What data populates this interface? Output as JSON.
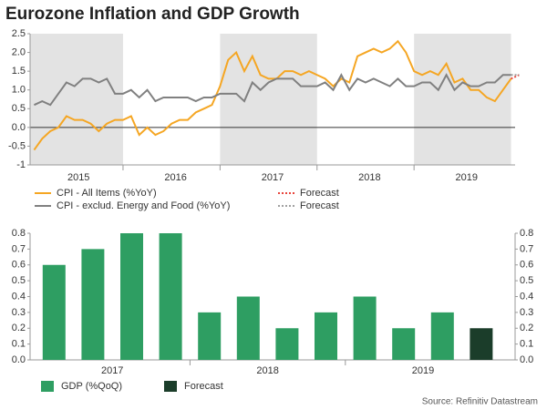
{
  "title": "Eurozone Inflation and GDP Growth",
  "source": "Source: Refinitiv Datastream",
  "chart_data": [
    {
      "type": "line",
      "categories": [
        null,
        null,
        null,
        null,
        null,
        "2015",
        null,
        null,
        null,
        null,
        null,
        null,
        null,
        null,
        null,
        null,
        null,
        "2016",
        null,
        null,
        null,
        null,
        null,
        null,
        null,
        null,
        null,
        null,
        null,
        "2017",
        null,
        null,
        null,
        null,
        null,
        null,
        null,
        null,
        null,
        null,
        null,
        "2018",
        null,
        null,
        null,
        null,
        null,
        null,
        null,
        null,
        null,
        null,
        null,
        "2019",
        null,
        null,
        null,
        null,
        null,
        null,
        null
      ],
      "series": [
        {
          "name": "CPI - All Items (%YoY)",
          "color": "#f5a623",
          "line_style": "solid",
          "values": [
            -0.6,
            -0.3,
            -0.1,
            0.0,
            0.3,
            0.2,
            0.2,
            0.1,
            -0.1,
            0.1,
            0.2,
            0.2,
            0.3,
            -0.2,
            0.0,
            -0.2,
            -0.1,
            0.1,
            0.2,
            0.2,
            0.4,
            0.5,
            0.6,
            1.1,
            1.8,
            2.0,
            1.5,
            1.9,
            1.4,
            1.3,
            1.3,
            1.5,
            1.5,
            1.4,
            1.5,
            1.4,
            1.3,
            1.1,
            1.3,
            1.2,
            1.9,
            2.0,
            2.1,
            2.0,
            2.1,
            2.3,
            2.0,
            1.5,
            1.4,
            1.5,
            1.4,
            1.7,
            1.2,
            1.3,
            1.0,
            1.0,
            0.8,
            0.7,
            1.0,
            1.3,
            null
          ]
        },
        {
          "name": "Forecast",
          "color": "#e8453c",
          "line_style": "dotted",
          "values": [
            null,
            null,
            null,
            null,
            null,
            null,
            null,
            null,
            null,
            null,
            null,
            null,
            null,
            null,
            null,
            null,
            null,
            null,
            null,
            null,
            null,
            null,
            null,
            null,
            null,
            null,
            null,
            null,
            null,
            null,
            null,
            null,
            null,
            null,
            null,
            null,
            null,
            null,
            null,
            null,
            null,
            null,
            null,
            null,
            null,
            null,
            null,
            null,
            null,
            null,
            null,
            null,
            null,
            null,
            null,
            null,
            null,
            null,
            null,
            1.3,
            1.4
          ]
        },
        {
          "name": "CPI - exclud. Energy and Food (%YoY)",
          "color": "#808080",
          "line_style": "solid",
          "values": [
            0.6,
            0.7,
            0.6,
            0.9,
            1.2,
            1.1,
            1.3,
            1.3,
            1.2,
            1.3,
            0.9,
            0.9,
            1.0,
            0.8,
            1.0,
            0.7,
            0.8,
            0.8,
            0.8,
            0.8,
            0.7,
            0.8,
            0.8,
            0.9,
            0.9,
            0.9,
            0.7,
            1.2,
            1.0,
            1.2,
            1.3,
            1.3,
            1.3,
            1.1,
            1.1,
            1.1,
            1.2,
            1.0,
            1.4,
            1.0,
            1.3,
            1.2,
            1.3,
            1.2,
            1.1,
            1.3,
            1.1,
            1.1,
            1.2,
            1.2,
            1.0,
            1.4,
            1.0,
            1.2,
            1.1,
            1.1,
            1.2,
            1.2,
            1.4,
            1.4,
            null
          ]
        },
        {
          "name": "Forecast",
          "color": "#a0a0a0",
          "line_style": "dotted",
          "values": [
            null,
            null,
            null,
            null,
            null,
            null,
            null,
            null,
            null,
            null,
            null,
            null,
            null,
            null,
            null,
            null,
            null,
            null,
            null,
            null,
            null,
            null,
            null,
            null,
            null,
            null,
            null,
            null,
            null,
            null,
            null,
            null,
            null,
            null,
            null,
            null,
            null,
            null,
            null,
            null,
            null,
            null,
            null,
            null,
            null,
            null,
            null,
            null,
            null,
            null,
            null,
            null,
            null,
            null,
            null,
            null,
            null,
            null,
            null,
            1.4,
            1.4
          ]
        }
      ],
      "ylim": [
        -1.0,
        2.5
      ],
      "yticks": [
        -1.0,
        -0.5,
        {
          "value": 0,
          "label": "0.0"
        },
        0.5,
        {
          "value": 1,
          "label": "1.0"
        },
        1.5,
        {
          "value": 2,
          "label": "2.0"
        },
        2.5
      ]
    },
    {
      "type": "bar",
      "categories": [
        null,
        "2017",
        null,
        null,
        null,
        "2018",
        null,
        null,
        null,
        "2019",
        null,
        null
      ],
      "series": [
        {
          "name": "GDP (%QoQ)",
          "color": "#2e9e62",
          "values": [
            0.6,
            0.7,
            0.8,
            0.8,
            0.3,
            0.4,
            0.2,
            0.3,
            0.4,
            0.2,
            0.3,
            null
          ]
        },
        {
          "name": "Forecast",
          "color": "#1b3d2a",
          "values": [
            null,
            null,
            null,
            null,
            null,
            null,
            null,
            null,
            null,
            null,
            null,
            0.2
          ]
        }
      ],
      "ylim": [
        0,
        0.8
      ],
      "yticks": [
        {
          "value": 0,
          "label": "0.0"
        },
        0.1,
        0.2,
        0.3,
        0.4,
        0.5,
        0.6,
        0.7,
        0.8
      ],
      "y2lim": [
        0,
        0.8
      ],
      "y2ticks": [
        {
          "value": 0,
          "label": "0.0"
        },
        0.1,
        0.2,
        0.3,
        0.4,
        0.5,
        0.6,
        0.7,
        0.8
      ]
    }
  ]
}
